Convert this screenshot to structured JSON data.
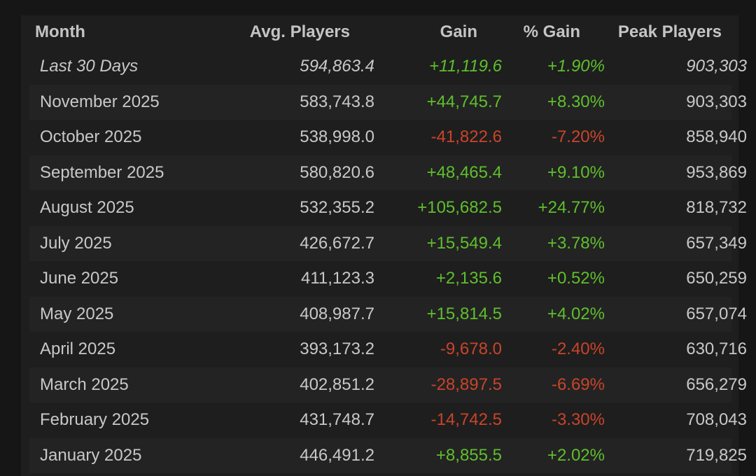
{
  "table": {
    "header": [
      "Month",
      "Avg. Players",
      "Gain",
      "% Gain",
      "Peak Players"
    ],
    "rows": [
      [
        "Last 30 Days",
        "594,863.4",
        "+11,119.6",
        "+1.90%",
        "903,303"
      ],
      [
        "November 2025",
        "583,743.8",
        "+44,745.7",
        "+8.30%",
        "903,303"
      ],
      [
        "October 2025",
        "538,998.0",
        "-41,822.6",
        "-7.20%",
        "858,940"
      ],
      [
        "September 2025",
        "580,820.6",
        "+48,465.4",
        "+9.10%",
        "953,869"
      ],
      [
        "August 2025",
        "532,355.2",
        "+105,682.5",
        "+24.77%",
        "818,732"
      ],
      [
        "July 2025",
        "426,672.7",
        "+15,549.4",
        "+3.78%",
        "657,349"
      ],
      [
        "June 2025",
        "411,123.3",
        "+2,135.6",
        "+0.52%",
        "650,259"
      ],
      [
        "May 2025",
        "408,987.7",
        "+15,814.5",
        "+4.02%",
        "657,074"
      ],
      [
        "April 2025",
        "393,173.2",
        "-9,678.0",
        "-2.40%",
        "630,716"
      ],
      [
        "March 2025",
        "402,851.2",
        "-28,897.5",
        "-6.69%",
        "656,279"
      ],
      [
        "February 2025",
        "431,748.7",
        "-14,742.5",
        "-3.30%",
        "708,043"
      ],
      [
        "January 2025",
        "446,491.2",
        "+8,855.5",
        "+2.02%",
        "719,825"
      ]
    ]
  }
}
